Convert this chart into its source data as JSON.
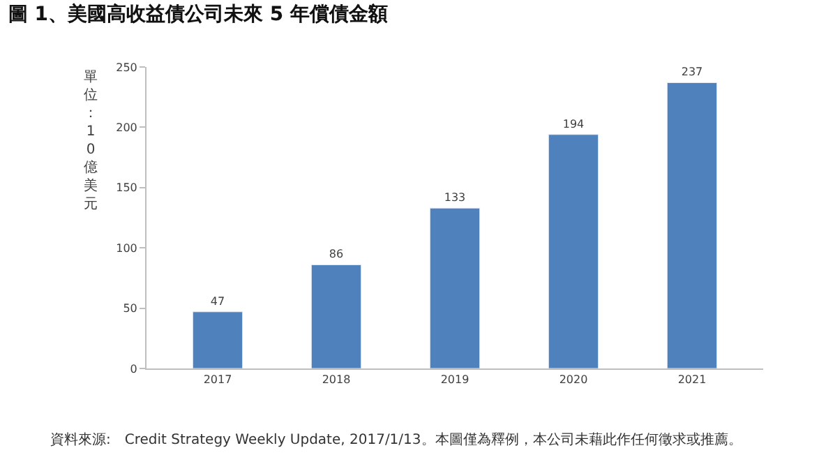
{
  "chart_data": {
    "type": "bar",
    "title": "圖 1、美國高收益債公司未來 5 年償債金額",
    "ylabel": "單位：10億美元",
    "categories": [
      "2017",
      "2018",
      "2019",
      "2020",
      "2021"
    ],
    "values": [
      47,
      86,
      133,
      194,
      237
    ],
    "color": "#4f81bd",
    "data_labels": true,
    "ylim": [
      0,
      250
    ],
    "yticks": [
      0,
      50,
      100,
      150,
      200,
      250
    ],
    "legend": false,
    "annotations": [
      "資料來源:　Credit Strategy Weekly Update, 2017/1/13。本圖僅為釋例，本公司未藉此作任何徵求或推薦。"
    ]
  }
}
